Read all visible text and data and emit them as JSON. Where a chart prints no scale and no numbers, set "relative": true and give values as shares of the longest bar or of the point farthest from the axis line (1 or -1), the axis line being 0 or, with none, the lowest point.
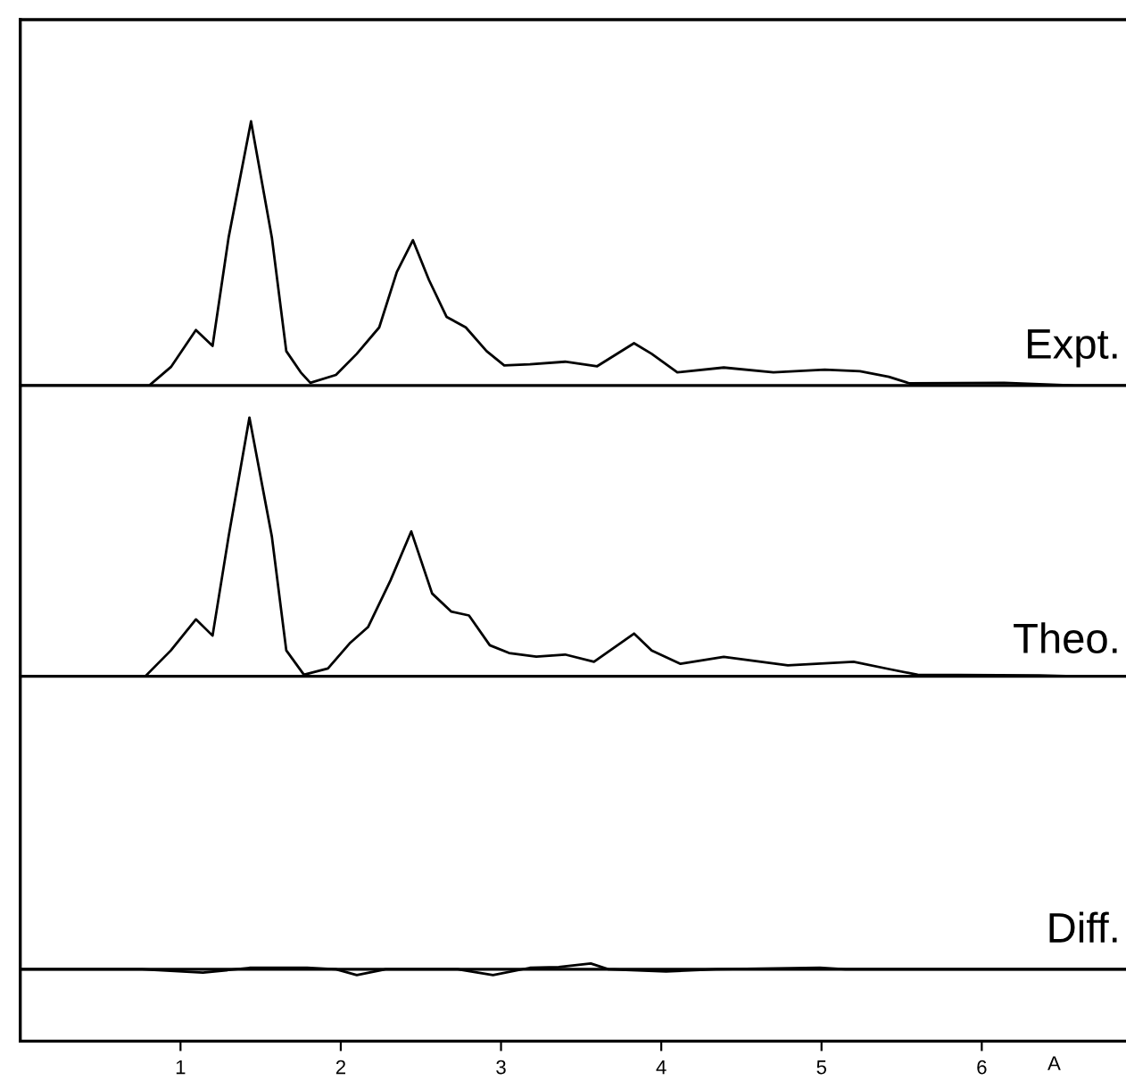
{
  "chart_data": [
    {
      "type": "line",
      "relative": true,
      "xlim": [
        0,
        6.9
      ],
      "tick_labels": false,
      "series": [
        {
          "name": "Expt.",
          "color": "#000000",
          "x": [
            0,
            0.65,
            0.805,
            0.94,
            1.096,
            1.2,
            1.3,
            1.44,
            1.57,
            1.66,
            1.75,
            1.81,
            1.97,
            2.1,
            2.24,
            2.35,
            2.45,
            2.55,
            2.66,
            2.78,
            2.91,
            3.02,
            3.18,
            3.4,
            3.6,
            3.83,
            3.94,
            4.1,
            4.39,
            4.7,
            5.02,
            5.24,
            5.42,
            5.55,
            6.14,
            6.58,
            6.9
          ],
          "values": [
            0,
            0,
            0,
            0.07,
            0.21,
            0.15,
            0.56,
            1.0,
            0.56,
            0.13,
            0.05,
            0.01,
            0.04,
            0.12,
            0.22,
            0.43,
            0.55,
            0.4,
            0.26,
            0.22,
            0.13,
            0.076,
            0.08,
            0.09,
            0.073,
            0.16,
            0.12,
            0.05,
            0.068,
            0.05,
            0.06,
            0.054,
            0.033,
            0.008,
            0.01,
            0,
            0
          ]
        }
      ]
    },
    {
      "type": "line",
      "relative": true,
      "xlim": [
        0,
        6.9
      ],
      "tick_labels": false,
      "series": [
        {
          "name": "Theo.",
          "color": "#000000",
          "x": [
            0,
            0.78,
            0.94,
            1.096,
            1.2,
            1.3,
            1.43,
            1.57,
            1.66,
            1.77,
            1.92,
            2.06,
            2.17,
            2.31,
            2.44,
            2.57,
            2.69,
            2.8,
            2.93,
            3.05,
            3.22,
            3.4,
            3.58,
            3.83,
            3.94,
            4.12,
            4.39,
            4.79,
            5.2,
            5.42,
            5.6,
            6.36,
            6.58,
            6.9
          ],
          "values": [
            0,
            0,
            0.1,
            0.22,
            0.157,
            0.54,
            1.0,
            0.54,
            0.1,
            0.006,
            0.03,
            0.13,
            0.19,
            0.37,
            0.56,
            0.32,
            0.25,
            0.235,
            0.12,
            0.09,
            0.076,
            0.084,
            0.056,
            0.165,
            0.1,
            0.048,
            0.075,
            0.042,
            0.056,
            0.028,
            0.006,
            0.003,
            0,
            0
          ]
        }
      ]
    },
    {
      "type": "line",
      "relative": true,
      "xlim": [
        0,
        6.9
      ],
      "xticks": [
        1,
        2,
        3,
        4,
        5,
        6
      ],
      "xlabel": "A",
      "tick_labels": "x",
      "series": [
        {
          "name": "Diff.",
          "color": "#000000",
          "x": [
            0,
            0.76,
            1.14,
            1.43,
            1.79,
            1.97,
            2.1,
            2.28,
            2.73,
            2.95,
            3.18,
            3.36,
            3.56,
            3.67,
            4.03,
            4.34,
            4.99,
            5.15,
            6.9
          ],
          "values": [
            0,
            0,
            -0.6,
            0.25,
            0.25,
            0,
            -1,
            0,
            0,
            -1,
            0.25,
            0.4,
            1,
            0,
            -0.4,
            0,
            0.25,
            0,
            0
          ]
        }
      ]
    }
  ]
}
